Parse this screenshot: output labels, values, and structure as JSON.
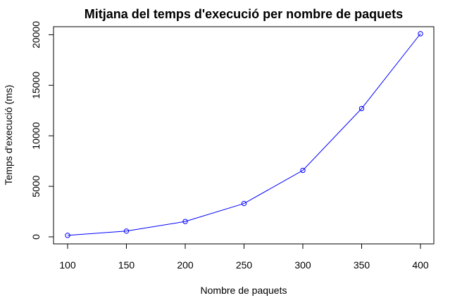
{
  "chart_data": {
    "type": "line",
    "title": "Mitjana del temps d'execució per nombre de paquets",
    "xlabel": "Nombre de paquets",
    "ylabel": "Temps d'execució (ms)",
    "x": [
      100,
      150,
      200,
      250,
      300,
      350,
      400
    ],
    "series": [
      {
        "values": [
          150,
          570,
          1520,
          3300,
          6580,
          12700,
          20100
        ]
      }
    ],
    "xlim": [
      100,
      400
    ],
    "ylim": [
      0,
      20100
    ],
    "x_ticks": [
      "100",
      "150",
      "200",
      "250",
      "300",
      "350",
      "400"
    ],
    "y_ticks": [
      "0",
      "5000",
      "10000",
      "15000",
      "20000"
    ],
    "line_color": "#0000ff",
    "marker": "open-circle",
    "grid": false
  }
}
